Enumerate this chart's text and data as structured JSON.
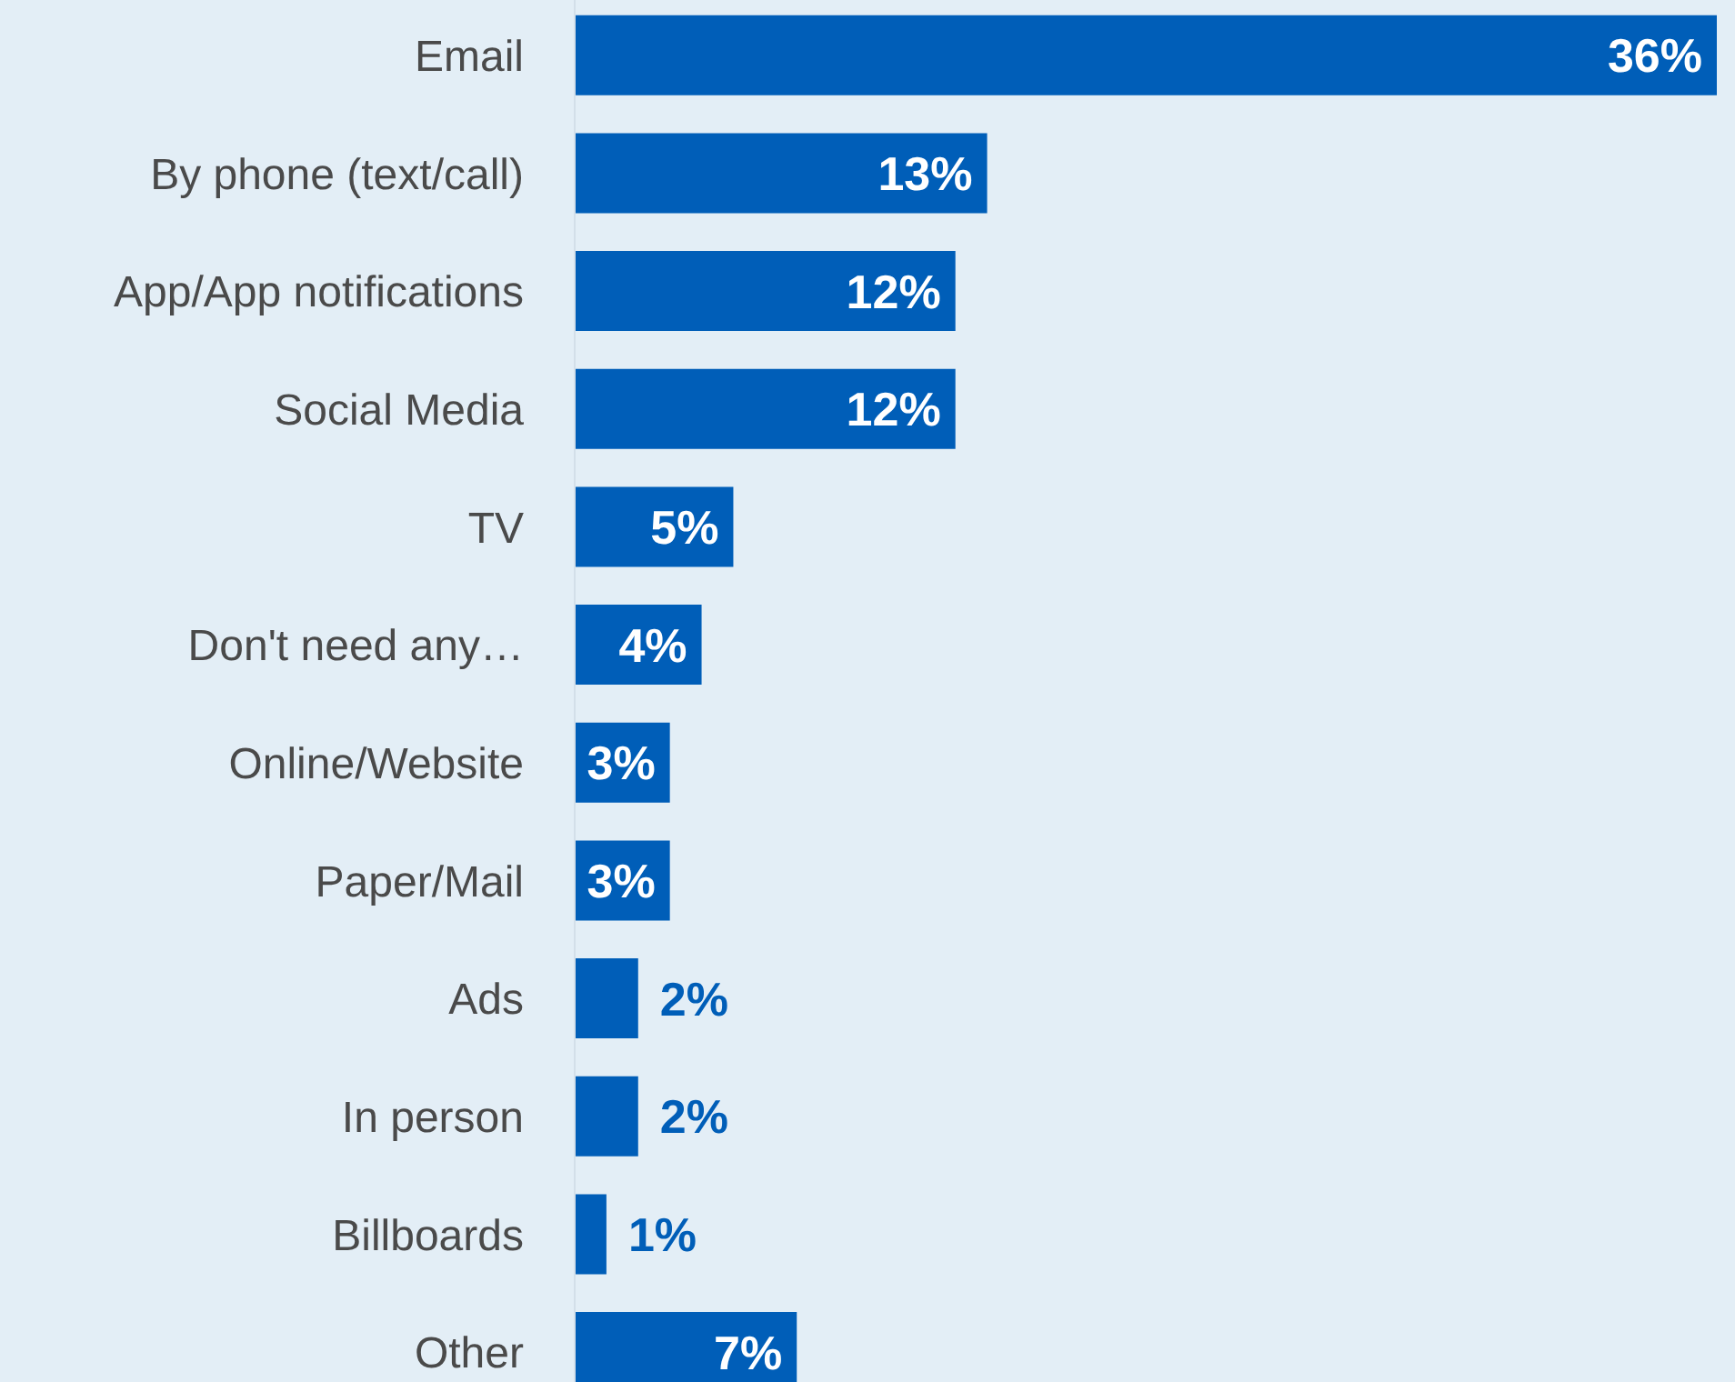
{
  "chart_data": {
    "type": "bar",
    "orientation": "horizontal",
    "categories": [
      "Email",
      "By phone (text/call)",
      "App/App notifications",
      "Social Media",
      "TV",
      "Don't need any…",
      "Online/Website",
      "Paper/Mail",
      "Ads",
      "In person",
      "Billboards",
      "Other"
    ],
    "values": [
      36,
      13,
      12,
      12,
      5,
      4,
      3,
      3,
      2,
      2,
      1,
      7
    ],
    "value_labels": [
      "36%",
      "13%",
      "12%",
      "12%",
      "5%",
      "4%",
      "3%",
      "3%",
      "2%",
      "2%",
      "1%",
      "7%"
    ],
    "color": "#005eb8",
    "grid": false,
    "legend": false
  }
}
